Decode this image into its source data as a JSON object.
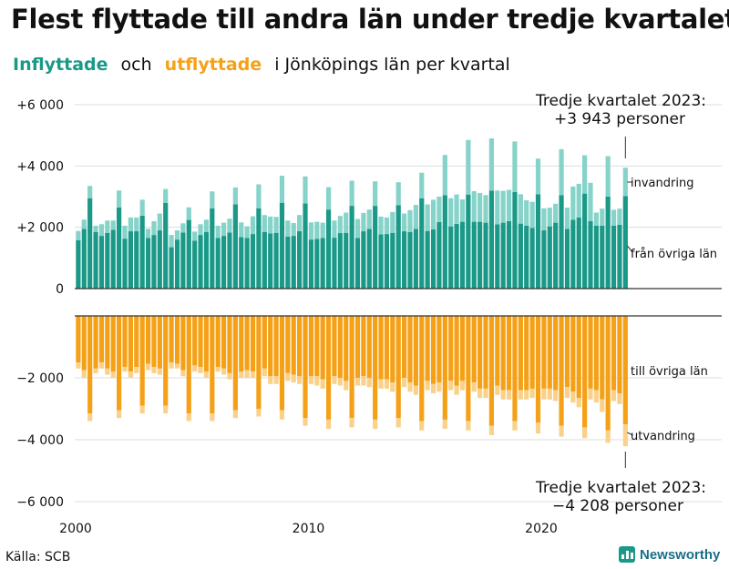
{
  "title": "Flest flyttade till andra län under tredje kvartalet",
  "subtitle": {
    "part1": "Inflyttade",
    "part2": "och",
    "part3": "utflyttade",
    "part4": "i Jönköpings län per kvartal"
  },
  "source": "Källa: SCB",
  "logo": {
    "text": "Newsworthy",
    "icon": "newsworthy-logo-icon"
  },
  "colors": {
    "inflow_main": "#1a9988",
    "inflow_light": "#86d3c9",
    "outflow_main": "#f5a117",
    "outflow_light": "#fad18a",
    "grid": "#dddddd",
    "axis": "#333333"
  },
  "chart_data": {
    "type": "bar",
    "stacked": true,
    "x_start": "2000 Q1",
    "x_end": "2023 Q3",
    "x_ticks": [
      "2000",
      "2010",
      "2020"
    ],
    "ylim": [
      -6000,
      6000
    ],
    "y_ticks": [
      "+6 000",
      "+4 000",
      "+2 000",
      "0",
      "−2 000",
      "−4 000",
      "−6 000"
    ],
    "y_tick_values": [
      6000,
      4000,
      2000,
      0,
      -2000,
      -4000,
      -6000
    ],
    "series": [
      {
        "name": "från övriga län",
        "values": [
          1580,
          1950,
          2950,
          1850,
          1720,
          1820,
          1920,
          2650,
          1630,
          1870,
          1870,
          2380,
          1650,
          1750,
          1900,
          2800,
          1350,
          1600,
          1830,
          2240,
          1560,
          1750,
          1850,
          2620,
          1650,
          1720,
          1830,
          2750,
          1680,
          1650,
          1780,
          2620,
          1850,
          1800,
          1820,
          2800,
          1700,
          1720,
          1870,
          2780,
          1600,
          1620,
          1650,
          2580,
          1660,
          1810,
          1820,
          2700,
          1650,
          1870,
          1950,
          2700,
          1770,
          1780,
          1820,
          2720,
          1870,
          1850,
          1950,
          2950,
          1880,
          1930,
          2170,
          3050,
          2030,
          2110,
          2180,
          3070,
          2180,
          2180,
          2150,
          3200,
          2100,
          2150,
          2200,
          3150,
          2120,
          2050,
          1980,
          3080,
          1900,
          2030,
          2150,
          3050,
          1950,
          2250,
          2320,
          3100,
          2200,
          2050,
          2050,
          3000,
          2050,
          2080,
          3020
        ]
      },
      {
        "name": "invandring",
        "values": [
          300,
          300,
          400,
          200,
          380,
          400,
          300,
          550,
          420,
          450,
          450,
          520,
          300,
          450,
          550,
          450,
          400,
          300,
          300,
          410,
          300,
          350,
          400,
          550,
          400,
          430,
          450,
          550,
          480,
          380,
          580,
          780,
          550,
          550,
          520,
          880,
          520,
          420,
          530,
          880,
          560,
          560,
          500,
          730,
          560,
          560,
          660,
          820,
          620,
          600,
          630,
          800,
          580,
          540,
          680,
          750,
          580,
          710,
          780,
          830,
          870,
          970,
          830,
          1310,
          920,
          960,
          730,
          1780,
          1000,
          940,
          900,
          1700,
          1100,
          1040,
          1020,
          1650,
          960,
          830,
          850,
          1160,
          720,
          610,
          620,
          1500,
          690,
          1080,
          1100,
          1250,
          1250,
          430,
          560,
          1320,
          520,
          530,
          923
        ]
      },
      {
        "name": "till övriga län",
        "values": [
          -1500,
          -1750,
          -3150,
          -1700,
          -1500,
          -1700,
          -1800,
          -3050,
          -1650,
          -1800,
          -1650,
          -2900,
          -1550,
          -1650,
          -1700,
          -2900,
          -1500,
          -1550,
          -1750,
          -3150,
          -1600,
          -1650,
          -1800,
          -3150,
          -1650,
          -1700,
          -1850,
          -3050,
          -1800,
          -1750,
          -1800,
          -3000,
          -1700,
          -1950,
          -1950,
          -3050,
          -1850,
          -1900,
          -1950,
          -3300,
          -1950,
          -1950,
          -2050,
          -3350,
          -1950,
          -2000,
          -2100,
          -3300,
          -2000,
          -1950,
          -2000,
          -3350,
          -2050,
          -2050,
          -2150,
          -3300,
          -2000,
          -2150,
          -2250,
          -3400,
          -2100,
          -2200,
          -2150,
          -3350,
          -2100,
          -2250,
          -2100,
          -3400,
          -2150,
          -2350,
          -2350,
          -3550,
          -2250,
          -2400,
          -2400,
          -3400,
          -2400,
          -2400,
          -2350,
          -3450,
          -2350,
          -2350,
          -2400,
          -3550,
          -2300,
          -2450,
          -2650,
          -3600,
          -2350,
          -2400,
          -2700,
          -3700,
          -2400,
          -2500,
          -3500
        ]
      },
      {
        "name": "utvandring",
        "values": [
          -200,
          -250,
          -250,
          -150,
          -200,
          -200,
          -200,
          -250,
          -150,
          -200,
          -200,
          -250,
          -200,
          -200,
          -200,
          -250,
          -200,
          -150,
          -200,
          -250,
          -200,
          -200,
          -200,
          -250,
          -150,
          -200,
          -200,
          -250,
          -200,
          -250,
          -200,
          -250,
          -250,
          -250,
          -250,
          -300,
          -250,
          -250,
          -250,
          -250,
          -250,
          -300,
          -300,
          -300,
          -250,
          -250,
          -300,
          -300,
          -250,
          -300,
          -300,
          -300,
          -300,
          -300,
          -300,
          -300,
          -300,
          -300,
          -300,
          -300,
          -300,
          -300,
          -300,
          -300,
          -300,
          -300,
          -300,
          -300,
          -300,
          -300,
          -300,
          -300,
          -300,
          -300,
          -300,
          -300,
          -300,
          -300,
          -300,
          -350,
          -350,
          -350,
          -350,
          -350,
          -350,
          -350,
          -300,
          -350,
          -350,
          -400,
          -400,
          -400,
          -350,
          -350,
          -708
        ]
      }
    ],
    "annotations": {
      "top_line1": "Tredje kvartalet 2023:",
      "top_line2": "+3 943 personer",
      "bottom_line1": "Tredje kvartalet 2023:",
      "bottom_line2": "−4 208 personer",
      "label_invandring": "invandring",
      "label_fran": "från övriga län",
      "label_till": "till övriga län",
      "label_utvandring": "utvandring"
    }
  }
}
